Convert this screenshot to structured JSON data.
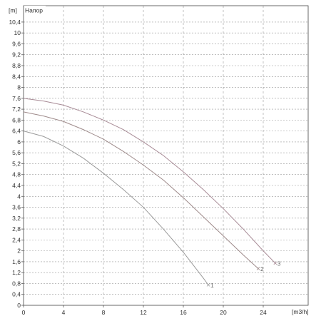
{
  "chart_data": {
    "type": "line",
    "title": "Напор",
    "ylabel": "[m]",
    "xlabel": "[m3/h]",
    "xlim": [
      0,
      28.5
    ],
    "ylim": [
      0,
      11
    ],
    "x_ticks": [
      0,
      4,
      8,
      12,
      16,
      20,
      24
    ],
    "x_tick_labels": [
      "0",
      "4",
      "8",
      "12",
      "16",
      "20",
      "24"
    ],
    "y_ticks": [
      0,
      0.4,
      0.8,
      1.2,
      1.6,
      2,
      2.4,
      2.8,
      3.2,
      3.6,
      4,
      4.4,
      4.8,
      5.2,
      5.6,
      6,
      6.4,
      6.8,
      7.2,
      7.6,
      8,
      8.4,
      8.8,
      9.2,
      9.6,
      10,
      10.4
    ],
    "y_tick_labels": [
      "0",
      "0,4",
      "0,8",
      "1,2",
      "1,6",
      "2",
      "2,4",
      "2,8",
      "3,2",
      "3,6",
      "4",
      "4,4",
      "4,8",
      "5,2",
      "5,6",
      "6",
      "6,4",
      "6,8",
      "7,2",
      "7,6",
      "8",
      "8,4",
      "8,8",
      "9,2",
      "9,6",
      "10",
      "10,4"
    ],
    "grid": true,
    "series": [
      {
        "name": "1",
        "color": "#9a9a9a",
        "x": [
          0,
          2,
          4,
          6,
          8,
          10,
          12,
          14,
          16,
          18,
          18.5
        ],
        "y": [
          6.4,
          6.2,
          5.85,
          5.4,
          4.85,
          4.25,
          3.6,
          2.8,
          1.95,
          1.0,
          0.75
        ]
      },
      {
        "name": "2",
        "color": "#9e8a8a",
        "x": [
          0,
          2,
          4,
          6,
          8,
          10,
          12,
          14,
          16,
          18,
          20,
          22,
          23.5
        ],
        "y": [
          7.1,
          6.95,
          6.75,
          6.45,
          6.1,
          5.65,
          5.15,
          4.6,
          3.95,
          3.25,
          2.55,
          1.85,
          1.35
        ]
      },
      {
        "name": "3",
        "color": "#a88b96",
        "x": [
          0,
          2,
          4,
          6,
          8,
          10,
          12,
          14,
          16,
          18,
          20,
          22,
          24,
          25.2
        ],
        "y": [
          7.6,
          7.5,
          7.35,
          7.1,
          6.8,
          6.45,
          6.0,
          5.5,
          4.9,
          4.25,
          3.55,
          2.8,
          2.0,
          1.55
        ]
      }
    ]
  }
}
